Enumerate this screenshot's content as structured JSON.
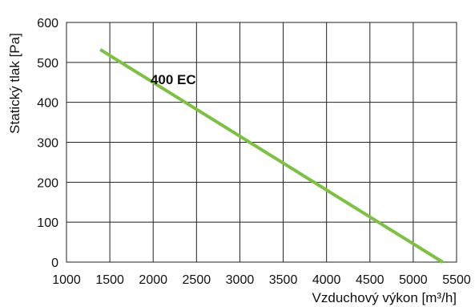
{
  "chart_data": {
    "type": "line",
    "title": "",
    "xlabel": "Vzduchový výkon [m³/h]",
    "ylabel": "Statický tlak [Pa]",
    "xlim": [
      1000,
      5500
    ],
    "ylim": [
      0,
      600
    ],
    "x_ticks": [
      1000,
      1500,
      2000,
      2500,
      3000,
      3500,
      4000,
      4500,
      5000,
      5500
    ],
    "y_ticks": [
      0,
      100,
      200,
      300,
      400,
      500,
      600
    ],
    "grid": true,
    "series": [
      {
        "name": "400 EC",
        "color": "#7dc142",
        "x": [
          1390,
          5340
        ],
        "y": [
          532,
          0
        ]
      }
    ]
  }
}
